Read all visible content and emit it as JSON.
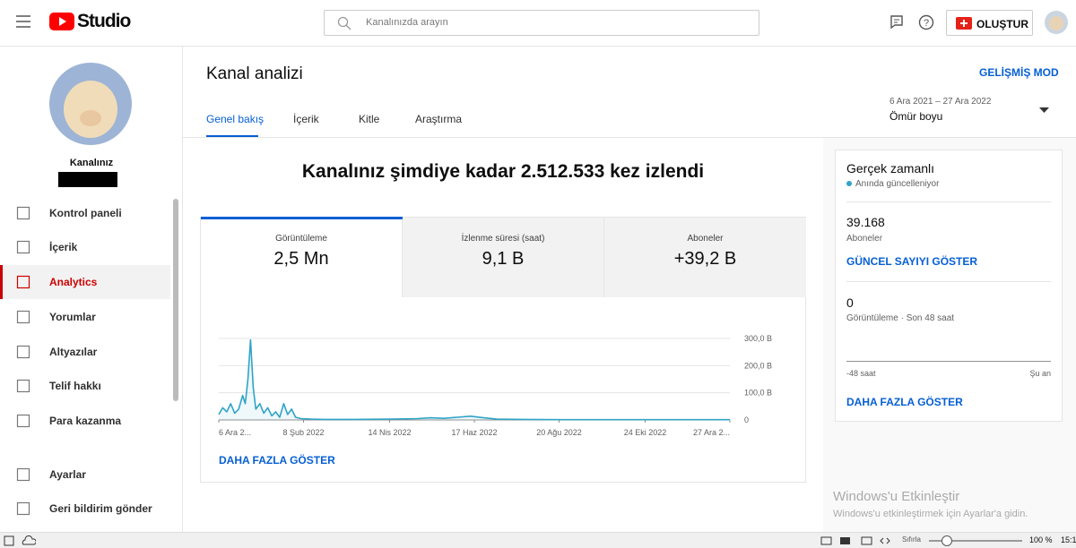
{
  "header": {
    "logo": "Studio",
    "search_placeholder": "Kanalınızda arayın",
    "create": "OLUŞTUR"
  },
  "sidebar": {
    "channel_name": "Kanalınız",
    "items": [
      "Kontrol paneli",
      "İçerik",
      "Analytics",
      "Yorumlar",
      "Altyazılar",
      "Telif hakkı",
      "Para kazanma"
    ],
    "bottom_items": [
      "Ayarlar",
      "Geri bildirim gönder"
    ]
  },
  "page": {
    "title": "Kanal analizi",
    "advanced": "GELİŞMİŞ MOD",
    "tabs": [
      "Genel bakış",
      "İçerik",
      "Kitle",
      "Araştırma"
    ],
    "date_range": "6 Ara 2021 – 27 Ara 2022",
    "period": "Ömür boyu"
  },
  "overview": {
    "headline": "Kanalınız şimdiye kadar 2.512.533 kez izlendi",
    "metrics": [
      {
        "label": "Görüntüleme",
        "value": "2,5 Mn"
      },
      {
        "label": "İzlenme süresi (saat)",
        "value": "9,1 B"
      },
      {
        "label": "Aboneler",
        "value": "+39,2 B"
      }
    ],
    "more": "DAHA FAZLA GÖSTER"
  },
  "chart_data": {
    "type": "line",
    "color": "#2fa4c6",
    "x": [
      0,
      3,
      6,
      9,
      12,
      15,
      18,
      20,
      22,
      24,
      26,
      28,
      31,
      34,
      37,
      40,
      43,
      46,
      49,
      52,
      55,
      58,
      62,
      70,
      80,
      100,
      130,
      150,
      160,
      170,
      180,
      190,
      200,
      210,
      230,
      260,
      300,
      340,
      386
    ],
    "values": [
      20000,
      45000,
      30000,
      60000,
      25000,
      40000,
      90000,
      60000,
      150000,
      295000,
      120000,
      40000,
      60000,
      25000,
      45000,
      15000,
      30000,
      10000,
      60000,
      20000,
      40000,
      10000,
      5000,
      3000,
      2000,
      2000,
      3000,
      5000,
      8000,
      6000,
      10000,
      14000,
      8000,
      3000,
      2000,
      1000,
      1000,
      1000,
      1000
    ],
    "xlim": [
      0,
      386
    ],
    "xticks": [
      {
        "value": 0,
        "label": "6 Ara 2..."
      },
      {
        "value": 64,
        "label": "8 Şub 2022"
      },
      {
        "value": 129,
        "label": "14 Nis 2022"
      },
      {
        "value": 193,
        "label": "17 Haz 2022"
      },
      {
        "value": 257,
        "label": "20 Ağu 2022"
      },
      {
        "value": 322,
        "label": "24 Eki 2022"
      },
      {
        "value": 386,
        "label": "27 Ara 2..."
      }
    ],
    "ylim": [
      0,
      300000
    ],
    "yticks": [
      0,
      {
        "value": 100000,
        "label": "100,0 B"
      },
      {
        "value": 200000,
        "label": "200,0 B"
      },
      {
        "value": 300000,
        "label": "300,0 B"
      }
    ],
    "grid": true
  },
  "realtime": {
    "title": "Gerçek zamanlı",
    "status": "Anında güncelleniyor",
    "subscribers": "39.168",
    "subscribers_label": "Aboneler",
    "live_count": "GÜNCEL SAYIYI GÖSTER",
    "views": "0",
    "views_label": "Görüntüleme · Son 48 saat",
    "axis_start": "-48 saat",
    "axis_end": "Şu an",
    "more": "DAHA FAZLA GÖSTER"
  },
  "watermark": {
    "title": "Windows'u Etkinleştir",
    "text": "Windows'u etkinleştirmek için Ayarlar'a gidin."
  },
  "taskbar": {
    "zoom_label": "Sıfırla",
    "zoom": "100 %",
    "time": "15:1"
  }
}
